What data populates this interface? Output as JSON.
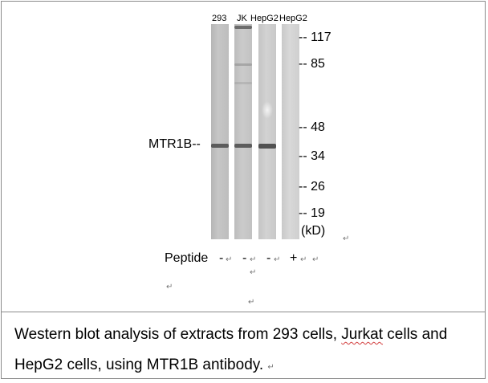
{
  "lanes": [
    {
      "label": "293",
      "peptide": "-"
    },
    {
      "label": "JK",
      "peptide": "-"
    },
    {
      "label": "HepG2",
      "peptide": "-"
    },
    {
      "label": "HepG2",
      "peptide": "+"
    }
  ],
  "markers": [
    "117",
    "85",
    "48",
    "34",
    "26",
    "19"
  ],
  "marker_prefix": "--",
  "unit_label": "(kD)",
  "protein_label": "MTR1B--",
  "peptide_label": "Peptide",
  "paragraph_mark": "↵",
  "caption": {
    "part1": "Western blot analysis of extracts from 293 cells, ",
    "part2": "Jurkat",
    "part3": " cells and HepG2 cells, using MTR1B antibody."
  }
}
